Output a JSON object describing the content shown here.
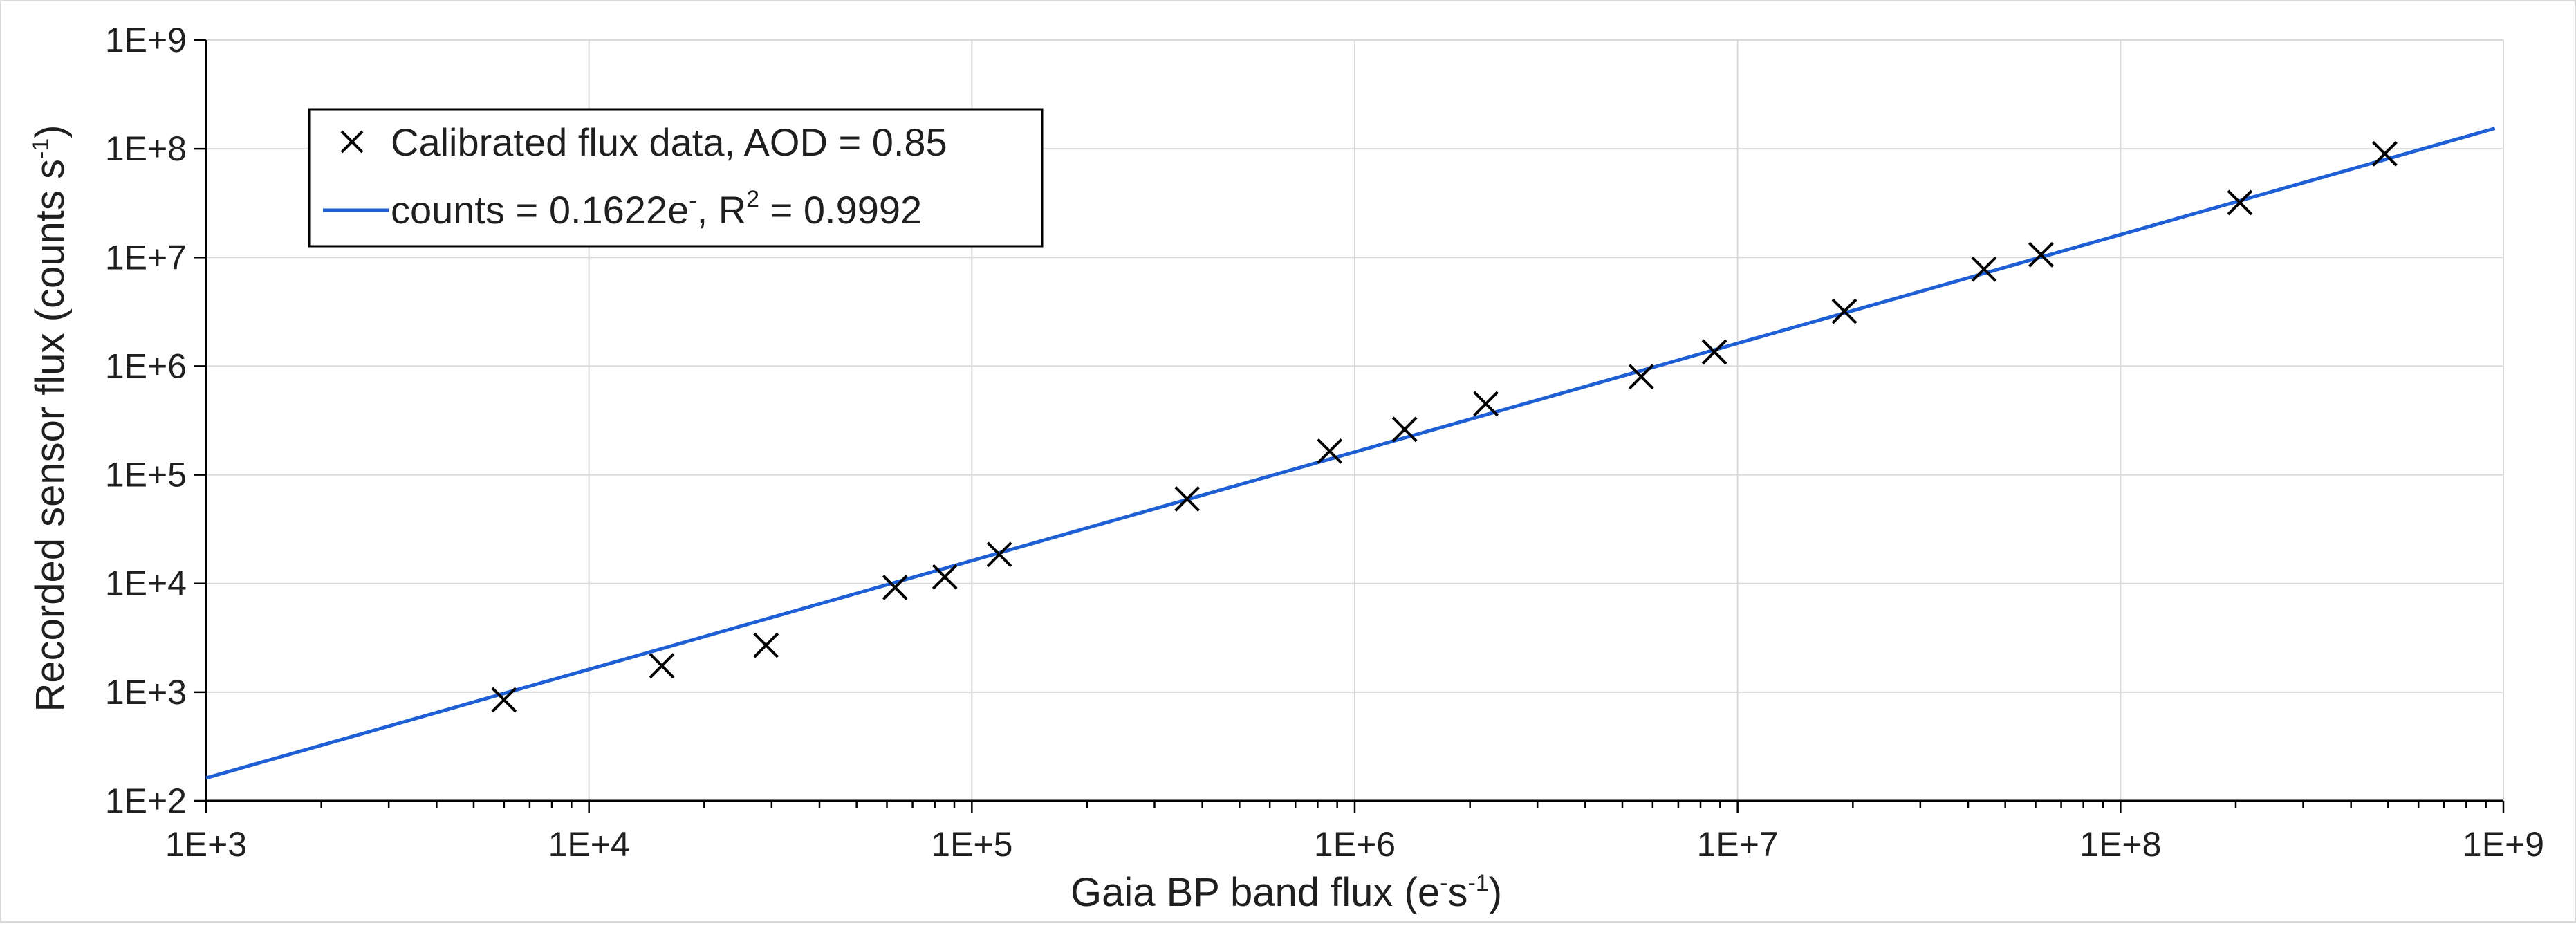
{
  "chart_data": {
    "type": "scatter",
    "x_scale": "log",
    "y_scale": "log",
    "xlim": [
      1000,
      1000000000
    ],
    "ylim": [
      100,
      1000000000
    ],
    "x_ticks": [
      "1E+3",
      "1E+4",
      "1E+5",
      "1E+6",
      "1E+7",
      "1E+8",
      "1E+9"
    ],
    "y_ticks": [
      "1E+2",
      "1E+3",
      "1E+4",
      "1E+5",
      "1E+6",
      "1E+7",
      "1E+8",
      "1E+9"
    ],
    "grid": true,
    "legend_position": "top-left",
    "xlabel": {
      "main": "Gaia BP band flux (e",
      "sup1": "-",
      "mid": "s",
      "sup2": "-1",
      "end": ")"
    },
    "ylabel": {
      "main": "Recorded sensor flux (counts s",
      "sup": "-1",
      "end": ")"
    },
    "series": [
      {
        "kind": "scatter",
        "marker": "x",
        "color": "#000000",
        "legend": "Calibrated flux data, AOD = 0.85",
        "points": [
          {
            "x": 6000,
            "y": 850
          },
          {
            "x": 15500,
            "y": 1750
          },
          {
            "x": 29000,
            "y": 2700
          },
          {
            "x": 63000,
            "y": 9200
          },
          {
            "x": 85000,
            "y": 11500
          },
          {
            "x": 118000,
            "y": 18500
          },
          {
            "x": 365000,
            "y": 60000
          },
          {
            "x": 860000,
            "y": 165000
          },
          {
            "x": 1350000,
            "y": 262000
          },
          {
            "x": 2200000,
            "y": 450000
          },
          {
            "x": 5600000,
            "y": 800000
          },
          {
            "x": 8700000,
            "y": 1350000
          },
          {
            "x": 19000000,
            "y": 3200000
          },
          {
            "x": 44000000,
            "y": 7800000
          },
          {
            "x": 62000000,
            "y": 10600000
          },
          {
            "x": 205000000,
            "y": 32000000
          },
          {
            "x": 490000000,
            "y": 90000000
          }
        ]
      },
      {
        "kind": "line",
        "color": "#1f5fd6",
        "legend_main": "counts = 0.1622e",
        "legend_sup": "-",
        "legend_r2_label": "R",
        "legend_r2_sup": "2",
        "legend_r2_value": " = 0.9992",
        "x": [
          1000,
          950000000
        ],
        "y": [
          162.2,
          154090000
        ]
      }
    ]
  }
}
